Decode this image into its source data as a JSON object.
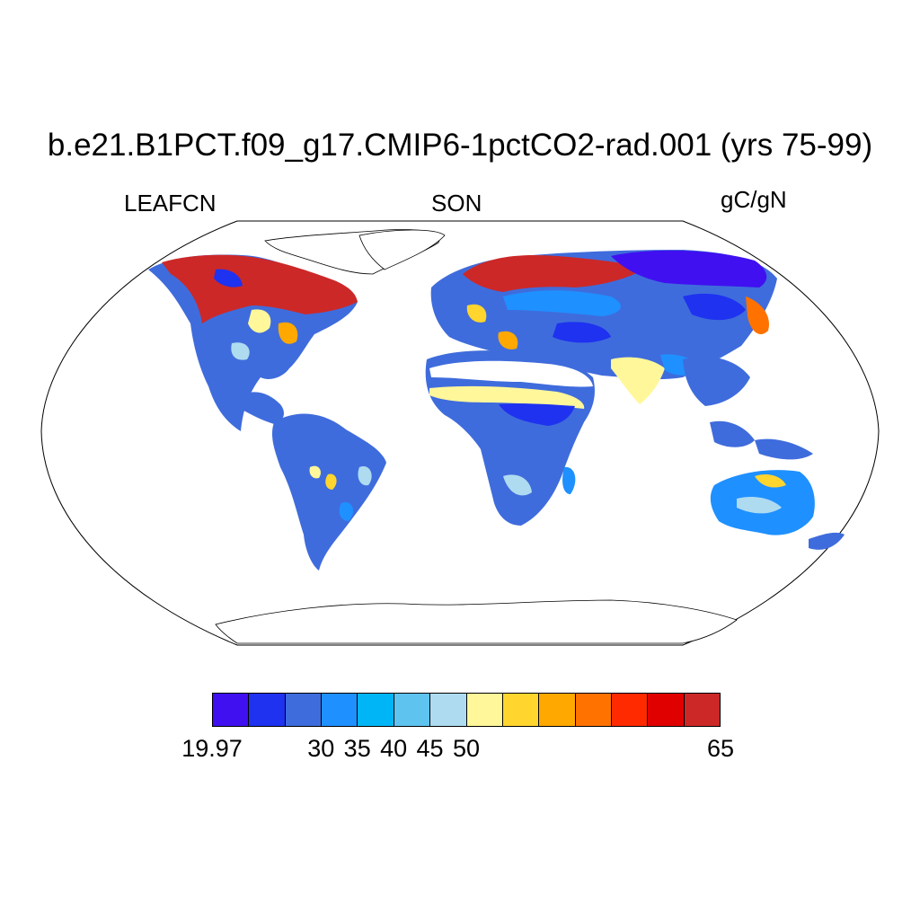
{
  "title": "b.e21.B1PCT.f09_g17.CMIP6-1pctCO2-rad.001 (yrs 75-99)",
  "subtitle_left": "LEAFCN",
  "subtitle_center": "SON",
  "subtitle_right": "gC/gN",
  "colorbar": {
    "colors": [
      "#4010f0",
      "#1e32f0",
      "#3f6cdc",
      "#1f90ff",
      "#00b5f5",
      "#5fc3f0",
      "#aedbf0",
      "#fff79a",
      "#ffd52e",
      "#ffa800",
      "#ff7200",
      "#ff2a00",
      "#e00000",
      "#cc2828"
    ],
    "labels": [
      "19.97",
      "30",
      "35",
      "40",
      "45",
      "50",
      "65"
    ],
    "label_boundary_index": [
      0,
      3,
      4,
      5,
      6,
      7,
      14
    ]
  },
  "map_data": {
    "projection": "Robinson",
    "regions": [
      {
        "name": "north-america-boreal",
        "level": 13
      },
      {
        "name": "north-america-temperate",
        "level": 3
      },
      {
        "name": "south-america",
        "level": 3
      },
      {
        "name": "sahara-band",
        "level": 8
      },
      {
        "name": "africa",
        "level": 3
      },
      {
        "name": "europe-north",
        "level": 13
      },
      {
        "name": "siberia",
        "level": 1
      },
      {
        "name": "india",
        "level": 8
      },
      {
        "name": "australia",
        "level": 4
      }
    ]
  }
}
